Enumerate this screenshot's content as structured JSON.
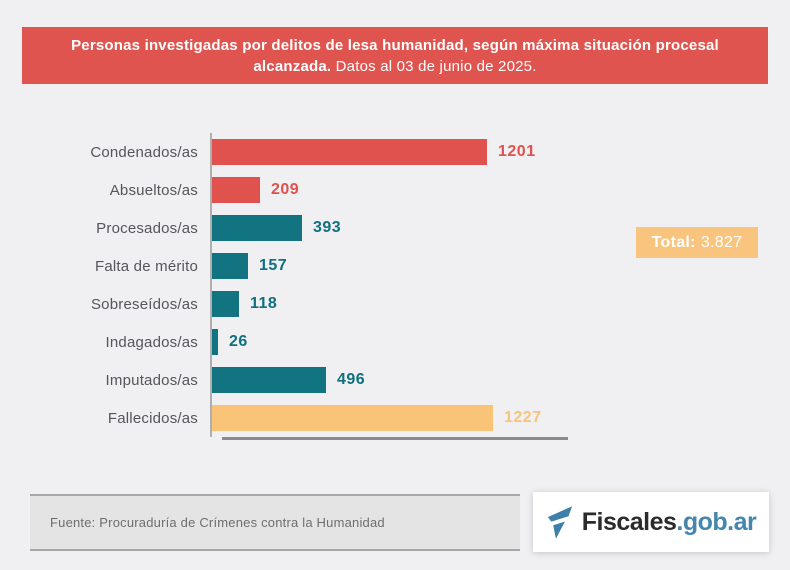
{
  "page": {
    "background": "#F0EFF1"
  },
  "header": {
    "title_bold": "Personas investigadas por delitos de lesa humanidad, según máxima situación procesal alcanzada.",
    "title_regular": "Datos al 03 de junio de 2025.",
    "background": "#E05450",
    "text_color": "#FFFFFF"
  },
  "chart_data": {
    "type": "bar",
    "orientation": "horizontal",
    "title": "Personas investigadas por delitos de lesa humanidad, según máxima situación procesal alcanzada. Datos al 03 de junio de 2025.",
    "categories": [
      "Condenados/as",
      "Absueltos/as",
      "Procesados/as",
      "Falta de mérito",
      "Sobreseídos/as",
      "Indagados/as",
      "Imputados/as",
      "Fallecidos/as"
    ],
    "values": [
      1201,
      209,
      393,
      157,
      118,
      26,
      496,
      1227
    ],
    "bar_colors": [
      "#E0524E",
      "#E0524E",
      "#127381",
      "#127381",
      "#127381",
      "#127381",
      "#127381",
      "#F9C378"
    ],
    "value_label_colors": [
      "#E0524E",
      "#E0524E",
      "#0E7080",
      "#0E7080",
      "#0E7080",
      "#0E7080",
      "#0E7080",
      "#F9C378"
    ],
    "xlabel": "",
    "ylabel": "",
    "xlim": [
      0,
      1510
    ],
    "grid": false,
    "legend": false,
    "value_labels_shown": true,
    "total": 3827
  },
  "total_badge": {
    "label_bold": "Total:",
    "value": "3.827",
    "background": "#F8C47E",
    "text_color": "#FFFFFF"
  },
  "footer": {
    "source": "Fuente: Procuraduría de Crímenes contra la Humanidad"
  },
  "logo": {
    "icon": "flag-icon",
    "icon_color": "#3D7FA8",
    "text_dark": "Fiscales",
    "text_blue": ".gob.ar",
    "dark_color": "#2B2B2B",
    "blue_color": "#4486AE"
  }
}
